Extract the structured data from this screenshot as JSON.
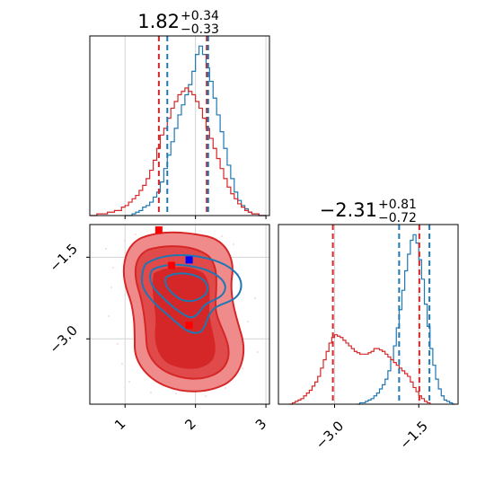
{
  "colors": {
    "blue": "#1f77b4",
    "red": "#d62728",
    "red_light": "#f08b8b",
    "red_mid": "#e04a4a",
    "grid": "#d3d3d3",
    "marker_blue": "#0000ff",
    "marker_red": "#ff0000"
  },
  "chart_data": [
    {
      "panel": "marginal-x",
      "type": "histogram",
      "title": {
        "median": "1.82",
        "plus": "+0.34",
        "minus": "−0.33"
      },
      "xlim": [
        0.5,
        3.05
      ],
      "grid": true,
      "vlines": {
        "red": [
          1.48,
          2.16
        ],
        "blue": [
          1.6,
          2.18
        ]
      },
      "series": [
        {
          "color": "blue",
          "x_start": 1.0,
          "bin_width": 0.05,
          "values": [
            0,
            0,
            1,
            2,
            3,
            5,
            6,
            8,
            11,
            14,
            20,
            28,
            36,
            44,
            52,
            60,
            66,
            72,
            78,
            86,
            96,
            101,
            96,
            88,
            80,
            70,
            60,
            50,
            40,
            30,
            22,
            14,
            9,
            6,
            4,
            2,
            1,
            1,
            0,
            0
          ]
        },
        {
          "color": "red",
          "x_start": 0.5,
          "bin_width": 0.05,
          "values": [
            0,
            0,
            1,
            1,
            1,
            2,
            2,
            3,
            3,
            5,
            6,
            8,
            10,
            12,
            15,
            18,
            22,
            27,
            33,
            40,
            48,
            52,
            58,
            64,
            68,
            72,
            74,
            76,
            74,
            72,
            68,
            64,
            58,
            52,
            46,
            40,
            34,
            28,
            22,
            17,
            13,
            10,
            7,
            5,
            3,
            2,
            1,
            1,
            0,
            0
          ]
        }
      ]
    },
    {
      "panel": "marginal-y",
      "type": "histogram",
      "title": {
        "median": "−2.31",
        "plus": "+0.81",
        "minus": "−0.72"
      },
      "xlim": [
        -4.0,
        -0.8
      ],
      "xticks": [
        "−3.0",
        "−1.5"
      ],
      "grid": true,
      "vlines": {
        "red": [
          -3.03,
          -1.49
        ],
        "blue": [
          -1.85,
          -1.31
        ]
      },
      "series": [
        {
          "color": "blue",
          "x_start": -2.6,
          "bin_width": 0.05,
          "values": [
            0,
            1,
            1,
            2,
            3,
            4,
            6,
            8,
            11,
            14,
            18,
            24,
            32,
            42,
            55,
            68,
            82,
            96,
            108,
            118,
            122,
            116,
            104,
            90,
            72,
            56,
            40,
            28,
            18,
            11,
            6,
            3,
            2,
            1,
            0
          ]
        },
        {
          "color": "red",
          "x_start": -3.8,
          "bin_width": 0.05,
          "values": [
            0,
            1,
            2,
            3,
            4,
            6,
            8,
            10,
            13,
            16,
            20,
            26,
            32,
            38,
            44,
            48,
            50,
            49,
            48,
            46,
            44,
            42,
            40,
            38,
            37,
            36,
            36,
            36,
            37,
            38,
            40,
            40,
            39,
            38,
            36,
            34,
            32,
            30,
            28,
            26,
            24,
            22,
            20,
            16,
            12,
            9,
            6,
            4,
            2,
            1
          ]
        }
      ]
    },
    {
      "panel": "joint",
      "type": "contour",
      "xlim": [
        0.5,
        3.05
      ],
      "ylim": [
        -4.2,
        -0.9
      ],
      "xticks": [
        "1",
        "2",
        "3"
      ],
      "yticks": [
        "−1.5",
        "−3.0"
      ],
      "grid": true,
      "markers": [
        {
          "color": "marker_blue",
          "x": 1.91,
          "y": -1.55
        },
        {
          "color": "marker_red",
          "x": 1.48,
          "y": -1.0
        },
        {
          "color": "marker_red",
          "x": 1.66,
          "y": -1.65
        },
        {
          "color": "marker_red",
          "x": 1.91,
          "y": -2.75
        }
      ]
    }
  ]
}
